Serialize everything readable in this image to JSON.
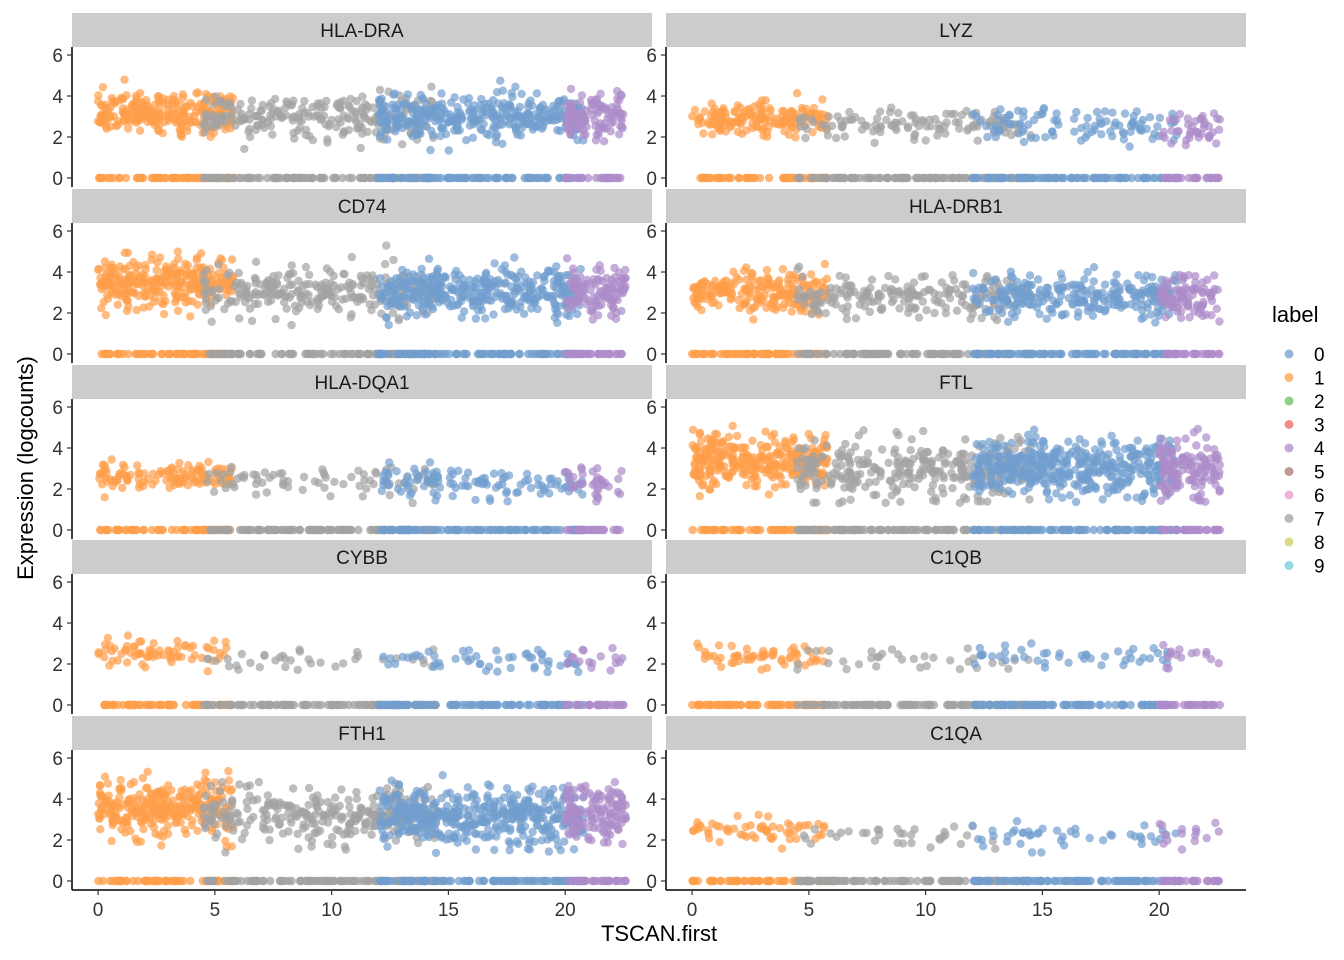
{
  "chart_data": {
    "type": "scatter",
    "layout": "facet_wrap",
    "ncol": 2,
    "xlabel": "TSCAN.first",
    "ylabel": "Expression (logcounts)",
    "xlim": [
      0,
      22.6
    ],
    "ylim": [
      0,
      6
    ],
    "xticks": [
      0,
      5,
      10,
      15,
      20
    ],
    "yticks": [
      0,
      2,
      4,
      6
    ],
    "grid": false,
    "legend": {
      "title": "label",
      "position": "right",
      "entries": [
        {
          "label": "0",
          "color": "#729ECE"
        },
        {
          "label": "1",
          "color": "#FF9E4A"
        },
        {
          "label": "2",
          "color": "#67BF5C"
        },
        {
          "label": "3",
          "color": "#ED665D"
        },
        {
          "label": "4",
          "color": "#AD8BC9"
        },
        {
          "label": "5",
          "color": "#A8786E"
        },
        {
          "label": "6",
          "color": "#ED97CA"
        },
        {
          "label": "7",
          "color": "#A2A2A2"
        },
        {
          "label": "8",
          "color": "#CDCC5D"
        },
        {
          "label": "9",
          "color": "#6DCCDA"
        }
      ]
    },
    "label_segments": [
      {
        "label": "1",
        "x_range": [
          0,
          5.8
        ]
      },
      {
        "label": "7",
        "x_range": [
          4.5,
          14.5
        ]
      },
      {
        "label": "0",
        "x_range": [
          12.0,
          20.8
        ]
      },
      {
        "label": "4",
        "x_range": [
          20.0,
          22.6
        ]
      }
    ],
    "panels": [
      {
        "gene": "HLA-DRA",
        "zero_fraction": 0.25,
        "mean": [
          3.2,
          3.0,
          3.0,
          3.0
        ],
        "sd": 0.55,
        "max": 5.4,
        "density": [
          1.0,
          0.5,
          0.85,
          0.9
        ]
      },
      {
        "gene": "LYZ",
        "zero_fraction": 0.5,
        "mean": [
          2.9,
          2.6,
          2.6,
          2.5
        ],
        "sd": 0.4,
        "max": 5.0,
        "density": [
          0.75,
          0.3,
          0.3,
          0.4
        ]
      },
      {
        "gene": "CD74",
        "zero_fraction": 0.2,
        "mean": [
          3.5,
          3.0,
          3.0,
          3.0
        ],
        "sd": 0.6,
        "max": 5.3,
        "density": [
          1.0,
          0.5,
          0.85,
          0.9
        ]
      },
      {
        "gene": "HLA-DRB1",
        "zero_fraction": 0.35,
        "mean": [
          3.0,
          2.8,
          2.8,
          2.8
        ],
        "sd": 0.5,
        "max": 4.6,
        "density": [
          0.85,
          0.45,
          0.7,
          0.8
        ]
      },
      {
        "gene": "HLA-DQA1",
        "zero_fraction": 0.55,
        "mean": [
          2.6,
          2.4,
          2.3,
          2.3
        ],
        "sd": 0.35,
        "max": 4.3,
        "density": [
          0.55,
          0.2,
          0.35,
          0.35
        ]
      },
      {
        "gene": "FTL",
        "zero_fraction": 0.12,
        "mean": [
          3.4,
          3.0,
          3.0,
          3.0
        ],
        "sd": 0.7,
        "max": 6.0,
        "density": [
          1.0,
          0.6,
          0.95,
          0.95
        ]
      },
      {
        "gene": "CYBB",
        "zero_fraction": 0.75,
        "mean": [
          2.5,
          2.2,
          2.2,
          2.2
        ],
        "sd": 0.3,
        "max": 4.3,
        "density": [
          0.4,
          0.12,
          0.2,
          0.2
        ]
      },
      {
        "gene": "C1QB",
        "zero_fraction": 0.8,
        "mean": [
          2.4,
          2.2,
          2.3,
          2.4
        ],
        "sd": 0.3,
        "max": 4.3,
        "density": [
          0.35,
          0.12,
          0.18,
          0.2
        ]
      },
      {
        "gene": "FTH1",
        "zero_fraction": 0.1,
        "mean": [
          3.6,
          3.2,
          3.2,
          3.2
        ],
        "sd": 0.7,
        "max": 5.8,
        "density": [
          1.0,
          0.55,
          0.95,
          0.95
        ]
      },
      {
        "gene": "C1QA",
        "zero_fraction": 0.8,
        "mean": [
          2.5,
          2.2,
          2.3,
          2.4
        ],
        "sd": 0.3,
        "max": 4.3,
        "density": [
          0.35,
          0.12,
          0.18,
          0.2
        ]
      }
    ]
  }
}
